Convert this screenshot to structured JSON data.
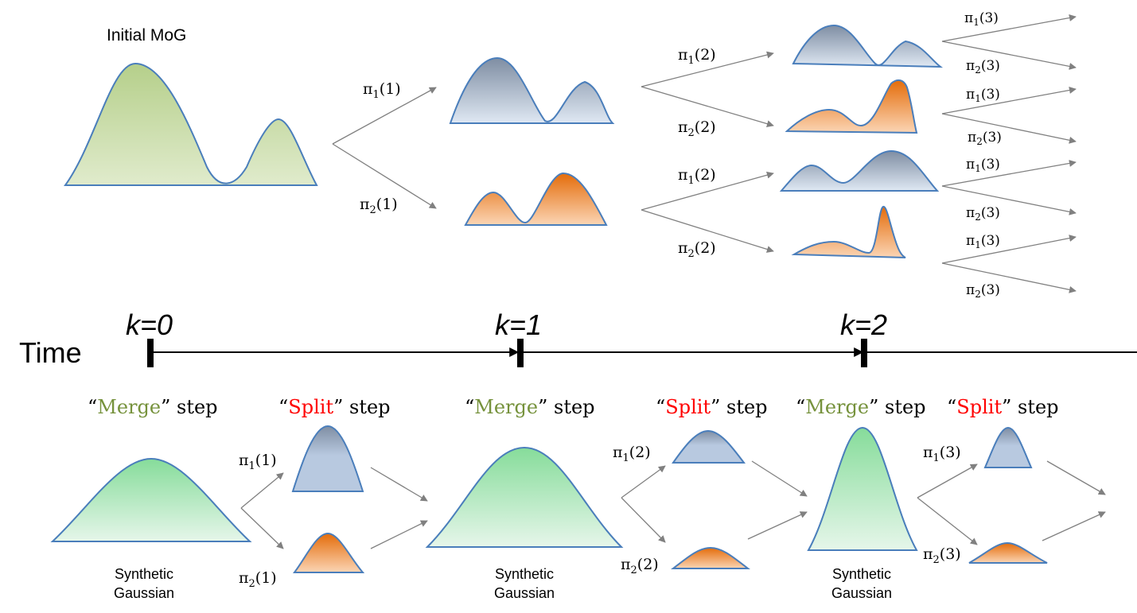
{
  "initial": {
    "title": "Initial MoG"
  },
  "branch_labels": {
    "pi": "π",
    "sub1": "1",
    "sub2": "2",
    "k1": "(1)",
    "k2": "(2)",
    "k3": "(3)"
  },
  "timeline": {
    "time_label": "Time",
    "ticks": [
      "k=0",
      "k=1",
      "k=2"
    ]
  },
  "steps": {
    "open_quote": "“",
    "close_quote": "”",
    "merge_word": "Merge",
    "split_word": "Split",
    "step_word": " step",
    "merge_color": "#76923c",
    "split_color": "#ff0000"
  },
  "synthetic": {
    "line1": "Synthetic",
    "line2": "Gaussian"
  },
  "colors": {
    "green_top": "#b5cf8a",
    "green_bottom": "#e0ebcc",
    "blue_top": "#7f8ea3",
    "blue_bottom": "#dfe8f3",
    "orange_top": "#e46c0a",
    "orange_bottom": "#fbd5b5",
    "gauss_top": "#86dc9a",
    "gauss_bottom": "#e6f6ea",
    "curve": "#4a7ebb",
    "arrow": "#808080"
  }
}
